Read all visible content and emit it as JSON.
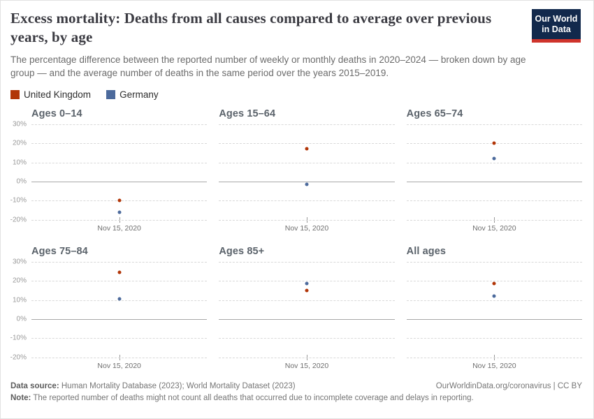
{
  "header": {
    "title": "Excess mortality: Deaths from all causes compared to average over previous years, by age",
    "subtitle": "The percentage difference between the reported number of weekly or monthly deaths in 2020–2024 — broken down by age group — and the average number of deaths in the same period over the years 2015–2019.",
    "logo": {
      "text": [
        "Our World",
        "in Data"
      ],
      "bg": "#12294c",
      "accent": "#cf342c"
    }
  },
  "chart_data": {
    "type": "scatter",
    "title": "Excess mortality: Deaths from all causes compared to average over previous years, by age",
    "x_categories": [
      "Nov 15, 2020"
    ],
    "x_tick_label": "Nov 15, 2020",
    "xlabel": "",
    "ylabel": "",
    "y_ticks": [
      30,
      20,
      10,
      0,
      -10,
      -20
    ],
    "y_suffix": "%",
    "ylim": [
      -20,
      30
    ],
    "grid": "horizontal dashed, solid zero line",
    "legend_position": "top-left",
    "panels": [
      "Ages 0–14",
      "Ages 15–64",
      "Ages 65–74",
      "Ages 75–84",
      "Ages 85+",
      "All ages"
    ],
    "series": [
      {
        "name": "United Kingdom",
        "color": "#b13507",
        "values_pct_by_panel": [
          -10,
          17,
          20,
          24.5,
          15,
          18.5
        ]
      },
      {
        "name": "Germany",
        "color": "#4c6a9c",
        "values_pct_by_panel": [
          -16,
          -1.5,
          12,
          10.5,
          18.5,
          12
        ]
      }
    ]
  },
  "footer": {
    "datasource_label": "Data source:",
    "datasource_text": " Human Mortality Database (2023); World Mortality Dataset (2023)",
    "license_text": "OurWorldinData.org/coronavirus | CC BY",
    "note_label": "Note:",
    "note_text": " The reported number of deaths might not count all deaths that occurred due to incomplete coverage and delays in reporting."
  }
}
